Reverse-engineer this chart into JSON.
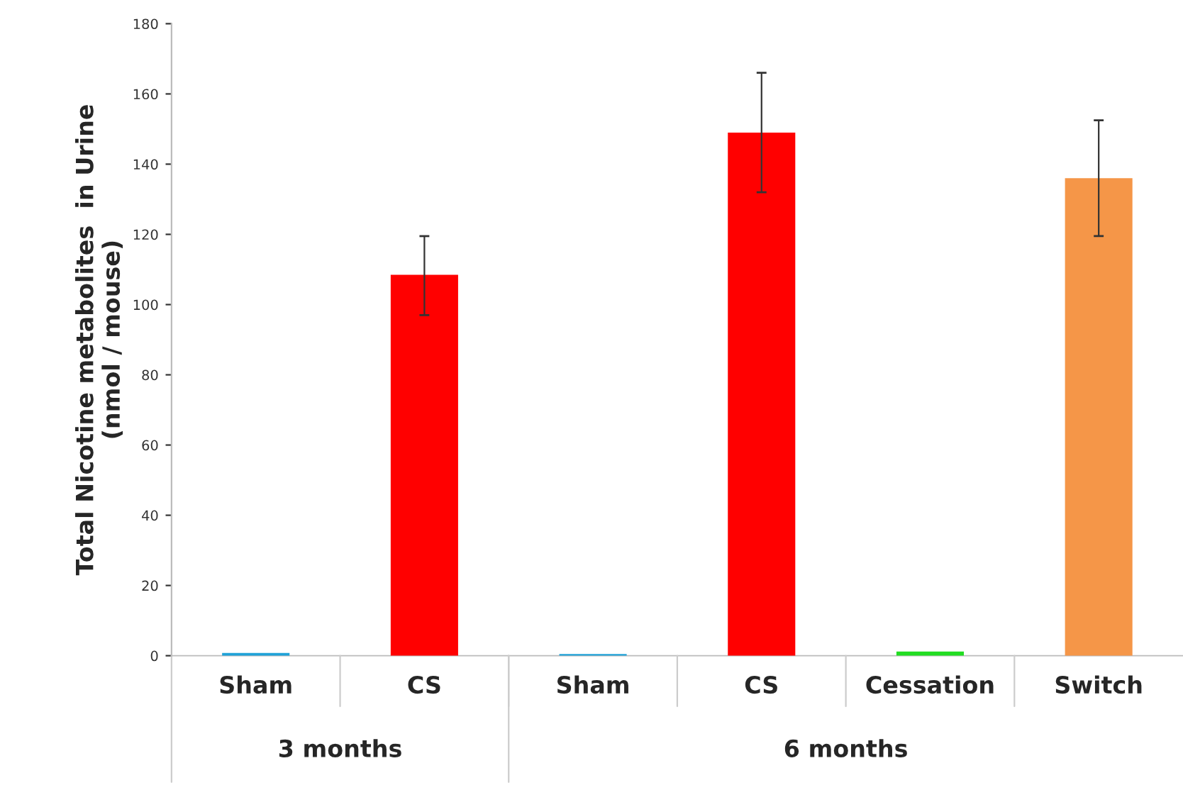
{
  "chart_data": {
    "type": "bar",
    "ylabel": "Total Nicotine metabolites  in Urine\n(nmol / mouse)",
    "categories": [
      "Sham",
      "CS",
      "Sham",
      "CS",
      "Cessation",
      "Switch"
    ],
    "values": [
      0.8,
      108.5,
      0.5,
      149,
      1.2,
      136
    ],
    "colors": [
      "#1fa2d8",
      "#ff0000",
      "#1fa2d8",
      "#ff0000",
      "#22dd22",
      "#f59648"
    ],
    "errors": [
      null,
      [
        97,
        119.5
      ],
      null,
      [
        132,
        166
      ],
      null,
      [
        119.5,
        152.5
      ]
    ],
    "ylim": [
      0,
      180
    ],
    "yticks": [
      0,
      20,
      40,
      60,
      80,
      100,
      120,
      140,
      160,
      180
    ],
    "annotations": [
      "3 months",
      "6 months"
    ],
    "grid": false
  }
}
